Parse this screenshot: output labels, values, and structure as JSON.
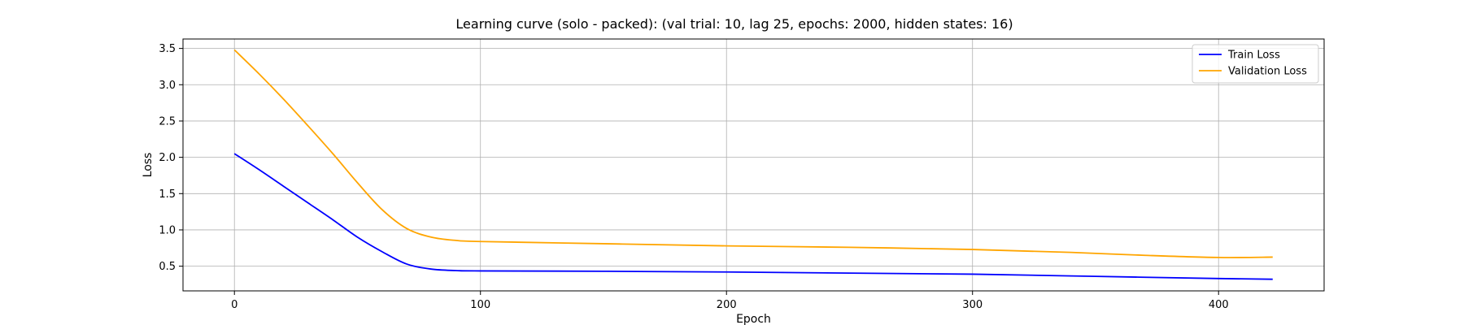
{
  "chart_data": {
    "type": "line",
    "title": "Learning curve (solo - packed): (val trial: 10, lag 25, epochs: 2000, hidden states: 16)",
    "xlabel": "Epoch",
    "ylabel": "Loss",
    "xlim": [
      -20.9,
      442.9
    ],
    "ylim": [
      0.16,
      3.63
    ],
    "xticks": [
      0,
      100,
      200,
      300,
      400
    ],
    "yticks": [
      0.5,
      1.0,
      1.5,
      2.0,
      2.5,
      3.0,
      3.5
    ],
    "ytick_labels": [
      "0.5",
      "1.0",
      "1.5",
      "2.0",
      "2.5",
      "3.0",
      "3.5"
    ],
    "grid": true,
    "legend_position": "top-right",
    "series": [
      {
        "name": "Train Loss",
        "color": "#0000ff",
        "x": [
          0,
          10,
          20,
          30,
          40,
          50,
          60,
          70,
          80,
          90,
          100,
          150,
          200,
          250,
          300,
          350,
          400,
          422
        ],
        "y": [
          2.05,
          1.83,
          1.6,
          1.37,
          1.14,
          0.9,
          0.7,
          0.53,
          0.46,
          0.44,
          0.435,
          0.43,
          0.42,
          0.405,
          0.39,
          0.36,
          0.33,
          0.32
        ]
      },
      {
        "name": "Validation Loss",
        "color": "#ffa500",
        "x": [
          0,
          10,
          20,
          30,
          40,
          50,
          60,
          70,
          80,
          90,
          100,
          150,
          200,
          250,
          300,
          340,
          370,
          400,
          422
        ],
        "y": [
          3.48,
          3.15,
          2.8,
          2.43,
          2.05,
          1.65,
          1.28,
          1.02,
          0.9,
          0.855,
          0.84,
          0.81,
          0.78,
          0.76,
          0.73,
          0.69,
          0.65,
          0.62,
          0.625
        ]
      }
    ]
  }
}
